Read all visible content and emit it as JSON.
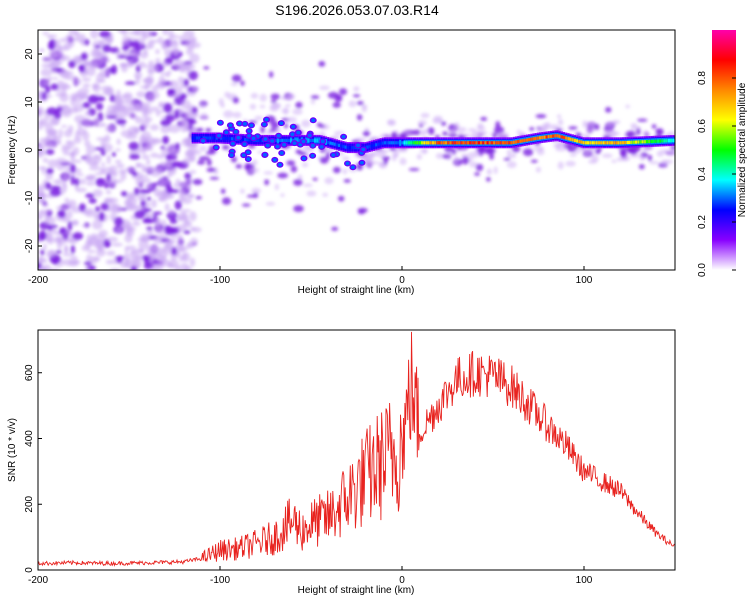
{
  "title": "S196.2026.053.07.03.R14",
  "chart_data": [
    {
      "type": "heatmap",
      "xlabel": "Height of straight line (km)",
      "ylabel": "Frequency (Hz)",
      "xlim": [
        -200,
        150
      ],
      "ylim": [
        -25,
        25
      ],
      "xticks": [
        -200,
        -100,
        0,
        100
      ],
      "xtick_labels": [
        "-200",
        "-100",
        "0",
        "100"
      ],
      "yticks": [
        -20,
        -10,
        0,
        10,
        20
      ],
      "ytick_labels": [
        "-20",
        "-10",
        "0",
        "10",
        "20"
      ],
      "colorbar": {
        "label": "Normalized spectral amplitude",
        "range": [
          0,
          1
        ],
        "ticks": [
          0.0,
          0.2,
          0.4,
          0.6,
          0.8
        ],
        "tick_labels": [
          "0.0",
          "0.2",
          "0.4",
          "0.6",
          "0.8"
        ],
        "colors": [
          "#ffffff",
          "#8800ff",
          "#0000ff",
          "#00ffff",
          "#00ff00",
          "#ffff00",
          "#ff8800",
          "#ff0000",
          "#ff00aa"
        ]
      },
      "ridge": {
        "description_free": true,
        "x": [
          -115,
          -100,
          -80,
          -60,
          -45,
          -30,
          -20,
          -10,
          0,
          20,
          40,
          60,
          75,
          85,
          100,
          120,
          150
        ],
        "freq": [
          2.5,
          2.5,
          2.0,
          2.0,
          2.0,
          0.5,
          0.5,
          1.5,
          1.5,
          1.5,
          1.5,
          1.5,
          2.5,
          3.0,
          1.5,
          1.5,
          2.0
        ],
        "amplitude": [
          0.3,
          0.3,
          0.3,
          0.35,
          0.35,
          0.3,
          0.3,
          0.3,
          0.35,
          0.85,
          0.9,
          0.85,
          0.8,
          0.9,
          0.7,
          0.75,
          0.4
        ]
      }
    },
    {
      "type": "line",
      "color": "#e8231f",
      "xlabel": "Height of straight line (km)",
      "ylabel": "SNR (10 * v/v)",
      "xlim": [
        -200,
        150
      ],
      "ylim": [
        0,
        730
      ],
      "xticks": [
        -200,
        -100,
        0,
        100
      ],
      "xtick_labels": [
        "-200",
        "-100",
        "0",
        "100"
      ],
      "yticks": [
        0,
        200,
        400,
        600
      ],
      "ytick_labels": [
        "0",
        "200",
        "400",
        "600"
      ],
      "series": [
        {
          "name": "SNR",
          "x": [
            -200,
            -180,
            -160,
            -140,
            -120,
            -110,
            -100,
            -90,
            -80,
            -70,
            -60,
            -55,
            -50,
            -40,
            -30,
            -20,
            -10,
            0,
            5,
            10,
            20,
            30,
            40,
            50,
            60,
            70,
            80,
            90,
            100,
            110,
            120,
            130,
            140,
            150
          ],
          "values": [
            20,
            22,
            20,
            22,
            25,
            35,
            60,
            65,
            80,
            100,
            150,
            120,
            140,
            160,
            220,
            280,
            330,
            380,
            560,
            420,
            500,
            580,
            600,
            590,
            560,
            500,
            440,
            380,
            300,
            270,
            240,
            170,
            110,
            70
          ]
        }
      ]
    }
  ]
}
